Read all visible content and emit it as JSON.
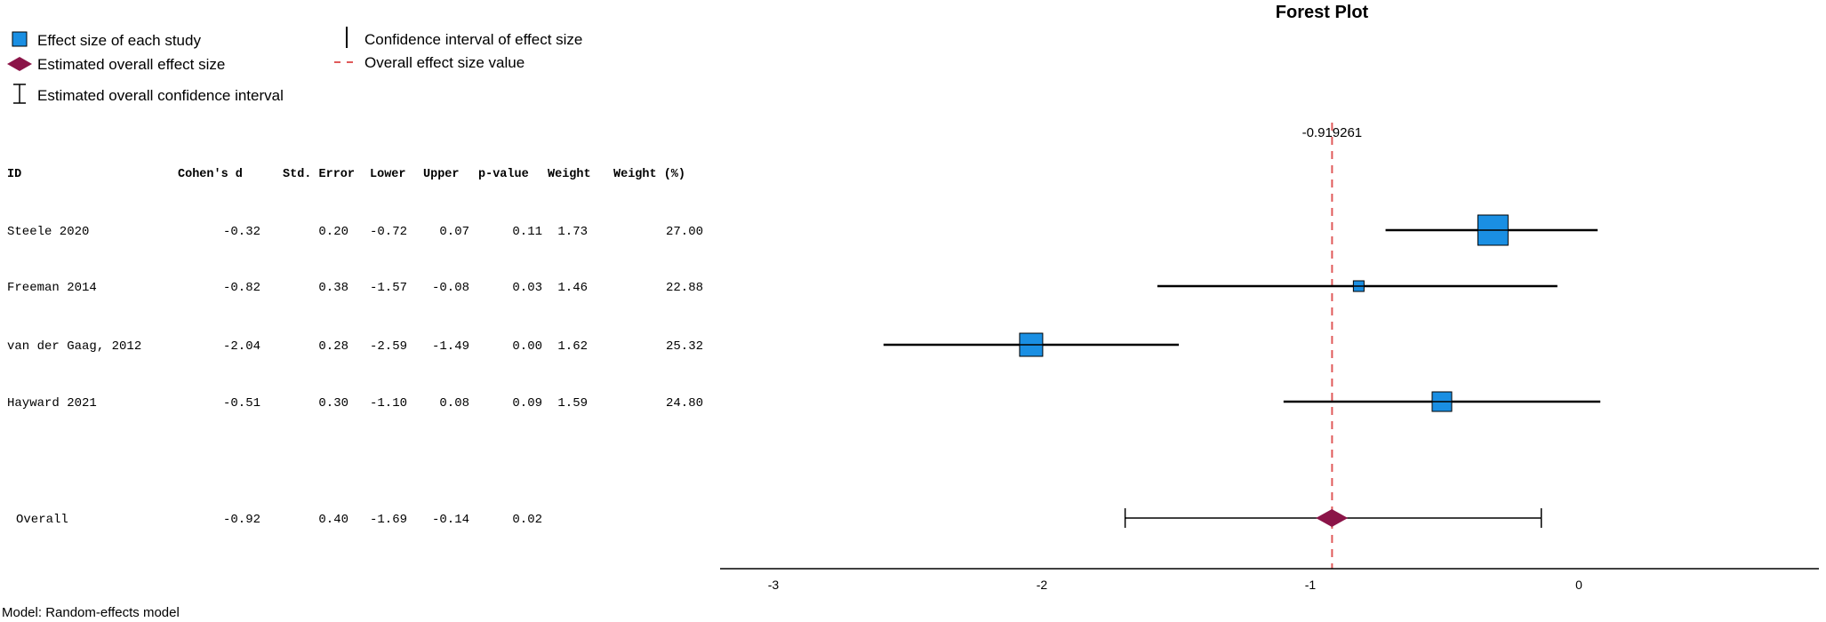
{
  "chart_data": {
    "type": "forest",
    "title": "Forest Plot",
    "model_note": "Model: Random-effects model",
    "legend": {
      "study_effect": "Effect size of each study",
      "overall_effect": "Estimated overall effect size",
      "overall_ci": "Estimated overall confidence interval",
      "study_ci": "Confidence interval of effect size",
      "overall_line": "Overall effect size value"
    },
    "columns": [
      "ID",
      "Cohen's d",
      "Std. Error",
      "Lower",
      "Upper",
      "p-value",
      "Weight",
      "Weight (%)"
    ],
    "studies": [
      {
        "id": "Steele 2020",
        "d": "-0.32",
        "se": "0.20",
        "lower": "-0.72",
        "upper": "0.07",
        "p": "0.11",
        "weight": "1.73",
        "weight_pct": "27.00",
        "d_val": -0.32,
        "lower_val": -0.72,
        "upper_val": 0.07,
        "weight_pct_val": 27.0
      },
      {
        "id": "Freeman 2014",
        "d": "-0.82",
        "se": "0.38",
        "lower": "-1.57",
        "upper": "-0.08",
        "p": "0.03",
        "weight": "1.46",
        "weight_pct": "22.88",
        "d_val": -0.82,
        "lower_val": -1.57,
        "upper_val": -0.08,
        "weight_pct_val": 22.88
      },
      {
        "id": "van der Gaag, 2012",
        "d": "-2.04",
        "se": "0.28",
        "lower": "-2.59",
        "upper": "-1.49",
        "p": "0.00",
        "weight": "1.62",
        "weight_pct": "25.32",
        "d_val": -2.04,
        "lower_val": -2.59,
        "upper_val": -1.49,
        "weight_pct_val": 25.32
      },
      {
        "id": "Hayward 2021",
        "d": "-0.51",
        "se": "0.30",
        "lower": "-1.10",
        "upper": "0.08",
        "p": "0.09",
        "weight": "1.59",
        "weight_pct": "24.80",
        "d_val": -0.51,
        "lower_val": -1.1,
        "upper_val": 0.08,
        "weight_pct_val": 24.8
      }
    ],
    "overall": {
      "id": "Overall",
      "d": "-0.92",
      "se": "0.40",
      "lower": "-1.69",
      "upper": "-0.14",
      "p": "0.02",
      "d_val": -0.92,
      "lower_val": -1.69,
      "upper_val": -0.14
    },
    "overall_value_label": "-0.919261",
    "overall_value": -0.919261,
    "x_ticks": [
      -3,
      -2,
      -1,
      0
    ],
    "x_tick_labels": [
      "-3",
      "-2",
      "-1",
      "0"
    ],
    "xlim": [
      -3.2,
      0.8
    ],
    "colors": {
      "study_box": "#1a8fe3",
      "overall_diamond": "#8b1448",
      "ref_line": "#e05a5a",
      "line": "#000000"
    }
  }
}
